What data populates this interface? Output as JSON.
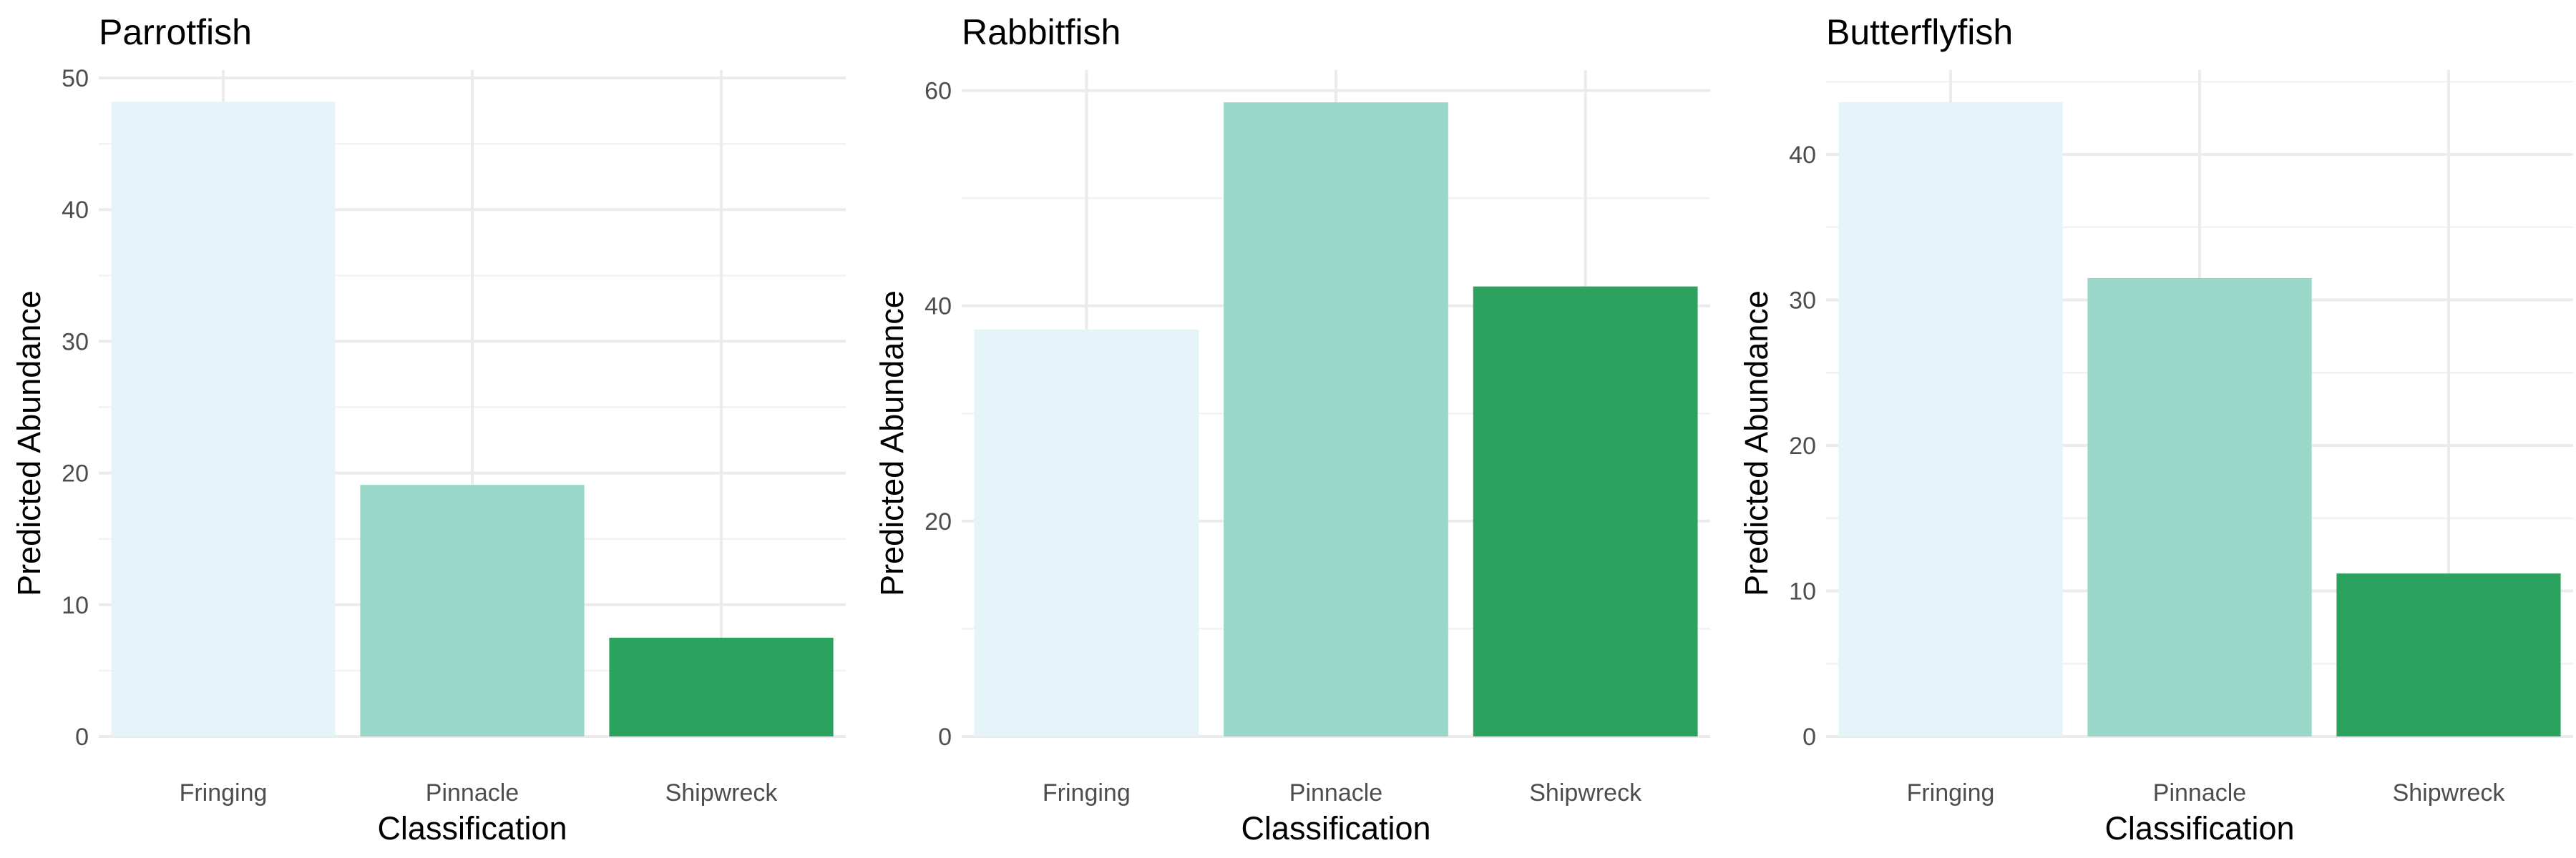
{
  "colors": {
    "Fringing": "#e5f4f9",
    "Pinnacle": "#99d8c8",
    "Shipwreck": "#2ca25f"
  },
  "chart_data": [
    {
      "type": "bar",
      "title": "Parrotfish",
      "xlabel": "Classification",
      "ylabel": "Predicted Abundance",
      "categories": [
        "Fringing",
        "Pinnacle",
        "Shipwreck"
      ],
      "values": [
        48.2,
        19.1,
        7.5
      ],
      "ylim": [
        0,
        50.6
      ],
      "yticks": [
        0,
        10,
        20,
        30,
        40,
        50
      ],
      "grid": true,
      "legend": "none"
    },
    {
      "type": "bar",
      "title": "Rabbitfish",
      "xlabel": "Classification",
      "ylabel": "Predicted Abundance",
      "categories": [
        "Fringing",
        "Pinnacle",
        "Shipwreck"
      ],
      "values": [
        37.8,
        58.9,
        41.8
      ],
      "ylim": [
        0,
        61.9
      ],
      "yticks": [
        0,
        20,
        40,
        60
      ],
      "grid": true,
      "legend": "none"
    },
    {
      "type": "bar",
      "title": "Butterflyfish",
      "xlabel": "Classification",
      "ylabel": "Predicted Abundance",
      "categories": [
        "Fringing",
        "Pinnacle",
        "Shipwreck"
      ],
      "values": [
        43.6,
        31.5,
        11.2
      ],
      "ylim": [
        0,
        45.8
      ],
      "yticks": [
        0,
        10,
        20,
        30,
        40
      ],
      "grid": true,
      "legend": "none"
    }
  ]
}
